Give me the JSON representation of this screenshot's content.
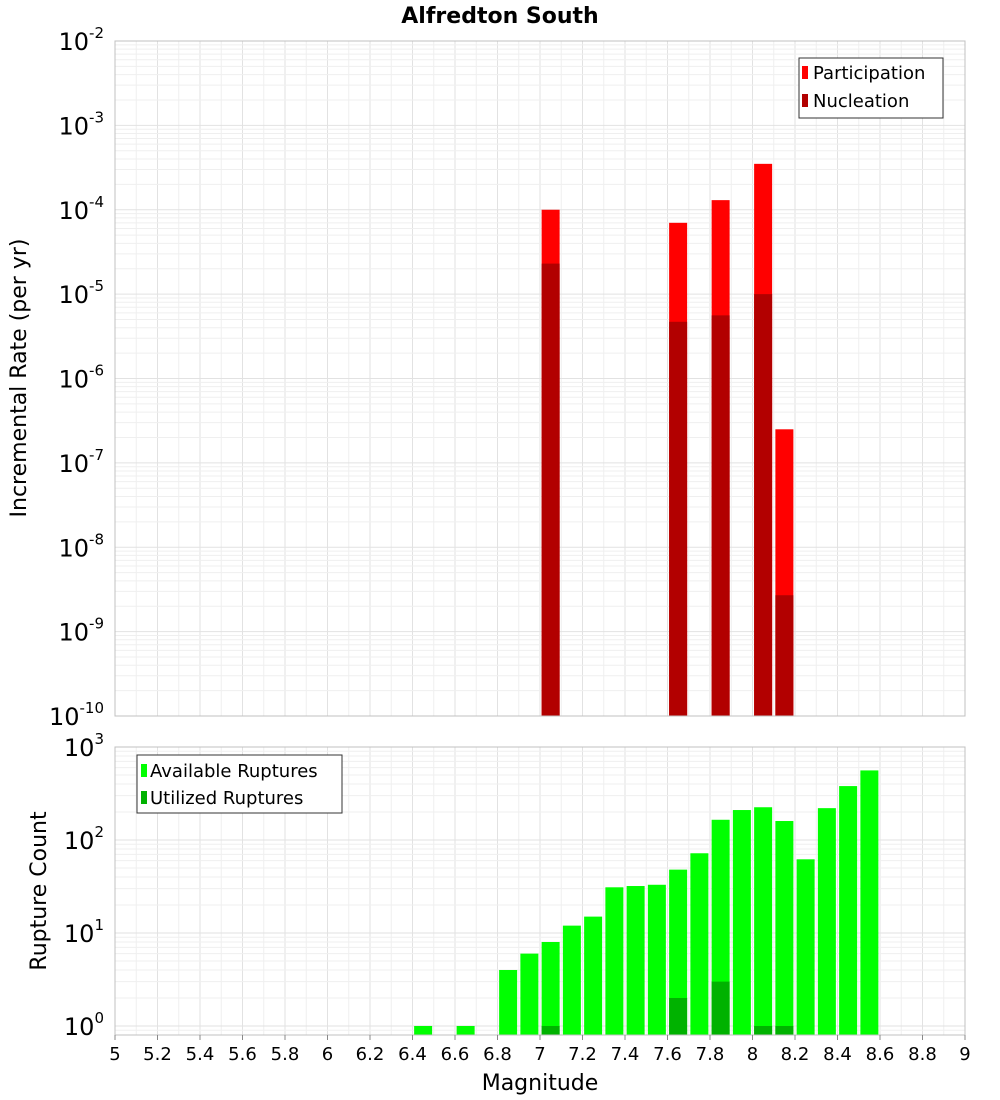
{
  "chart_data": [
    {
      "type": "bar",
      "id": "rates",
      "title": "Alfredton South",
      "xlabel": "",
      "ylabel": "Incremental Rate (per yr)",
      "yscale": "log",
      "ylim": [
        1e-10,
        0.01
      ],
      "xlim": [
        5,
        9
      ],
      "y_ticks": [
        {
          "base": "10",
          "exp": "-10",
          "value": 1e-10
        },
        {
          "base": "10",
          "exp": "-9",
          "value": 1e-09
        },
        {
          "base": "10",
          "exp": "-8",
          "value": 1e-08
        },
        {
          "base": "10",
          "exp": "-7",
          "value": 1e-07
        },
        {
          "base": "10",
          "exp": "-6",
          "value": 1e-06
        },
        {
          "base": "10",
          "exp": "-5",
          "value": 1e-05
        },
        {
          "base": "10",
          "exp": "-4",
          "value": 0.0001
        },
        {
          "base": "10",
          "exp": "-3",
          "value": 0.001
        },
        {
          "base": "10",
          "exp": "-2",
          "value": 0.01
        }
      ],
      "legend": {
        "position": "top-right"
      },
      "series": [
        {
          "name": "Participation",
          "color": "#ff0000",
          "points": [
            {
              "x": 7.05,
              "y": 0.0001
            },
            {
              "x": 7.65,
              "y": 7e-05
            },
            {
              "x": 7.85,
              "y": 0.00013
            },
            {
              "x": 8.05,
              "y": 0.00035
            },
            {
              "x": 8.15,
              "y": 2.5e-07
            }
          ]
        },
        {
          "name": "Nucleation",
          "color": "#b20000",
          "points": [
            {
              "x": 7.05,
              "y": 2.3e-05
            },
            {
              "x": 7.65,
              "y": 4.7e-06
            },
            {
              "x": 7.85,
              "y": 5.6e-06
            },
            {
              "x": 8.05,
              "y": 1e-05
            },
            {
              "x": 8.15,
              "y": 2.7e-09
            }
          ]
        }
      ]
    },
    {
      "type": "bar",
      "id": "counts",
      "title": "",
      "xlabel": "Magnitude",
      "ylabel": "Rupture Count",
      "yscale": "log",
      "ylim": [
        0.8,
        1000
      ],
      "xlim": [
        5,
        9
      ],
      "x_ticks": [
        "5",
        "5.2",
        "5.4",
        "5.6",
        "5.8",
        "6",
        "6.2",
        "6.4",
        "6.6",
        "6.8",
        "7",
        "7.2",
        "7.4",
        "7.6",
        "7.8",
        "8",
        "8.2",
        "8.4",
        "8.6",
        "8.8",
        "9"
      ],
      "y_ticks": [
        {
          "base": "10",
          "exp": "0",
          "value": 1
        },
        {
          "base": "10",
          "exp": "1",
          "value": 10
        },
        {
          "base": "10",
          "exp": "2",
          "value": 100
        },
        {
          "base": "10",
          "exp": "3",
          "value": 1000
        }
      ],
      "legend": {
        "position": "top-left"
      },
      "series": [
        {
          "name": "Available Ruptures",
          "color": "#00ff00",
          "points": [
            {
              "x": 6.45,
              "y": 1
            },
            {
              "x": 6.65,
              "y": 1
            },
            {
              "x": 6.85,
              "y": 4
            },
            {
              "x": 6.95,
              "y": 6
            },
            {
              "x": 7.05,
              "y": 8
            },
            {
              "x": 7.15,
              "y": 12
            },
            {
              "x": 7.25,
              "y": 15
            },
            {
              "x": 7.35,
              "y": 31
            },
            {
              "x": 7.45,
              "y": 32
            },
            {
              "x": 7.55,
              "y": 33
            },
            {
              "x": 7.65,
              "y": 48
            },
            {
              "x": 7.75,
              "y": 72
            },
            {
              "x": 7.85,
              "y": 165
            },
            {
              "x": 7.95,
              "y": 210
            },
            {
              "x": 8.05,
              "y": 225
            },
            {
              "x": 8.15,
              "y": 160
            },
            {
              "x": 8.25,
              "y": 62
            },
            {
              "x": 8.35,
              "y": 220
            },
            {
              "x": 8.45,
              "y": 380
            },
            {
              "x": 8.55,
              "y": 560
            }
          ]
        },
        {
          "name": "Utilized Ruptures",
          "color": "#00b200",
          "points": [
            {
              "x": 7.05,
              "y": 1
            },
            {
              "x": 7.65,
              "y": 2
            },
            {
              "x": 7.85,
              "y": 3
            },
            {
              "x": 8.05,
              "y": 1
            },
            {
              "x": 8.15,
              "y": 1
            }
          ]
        }
      ]
    }
  ]
}
